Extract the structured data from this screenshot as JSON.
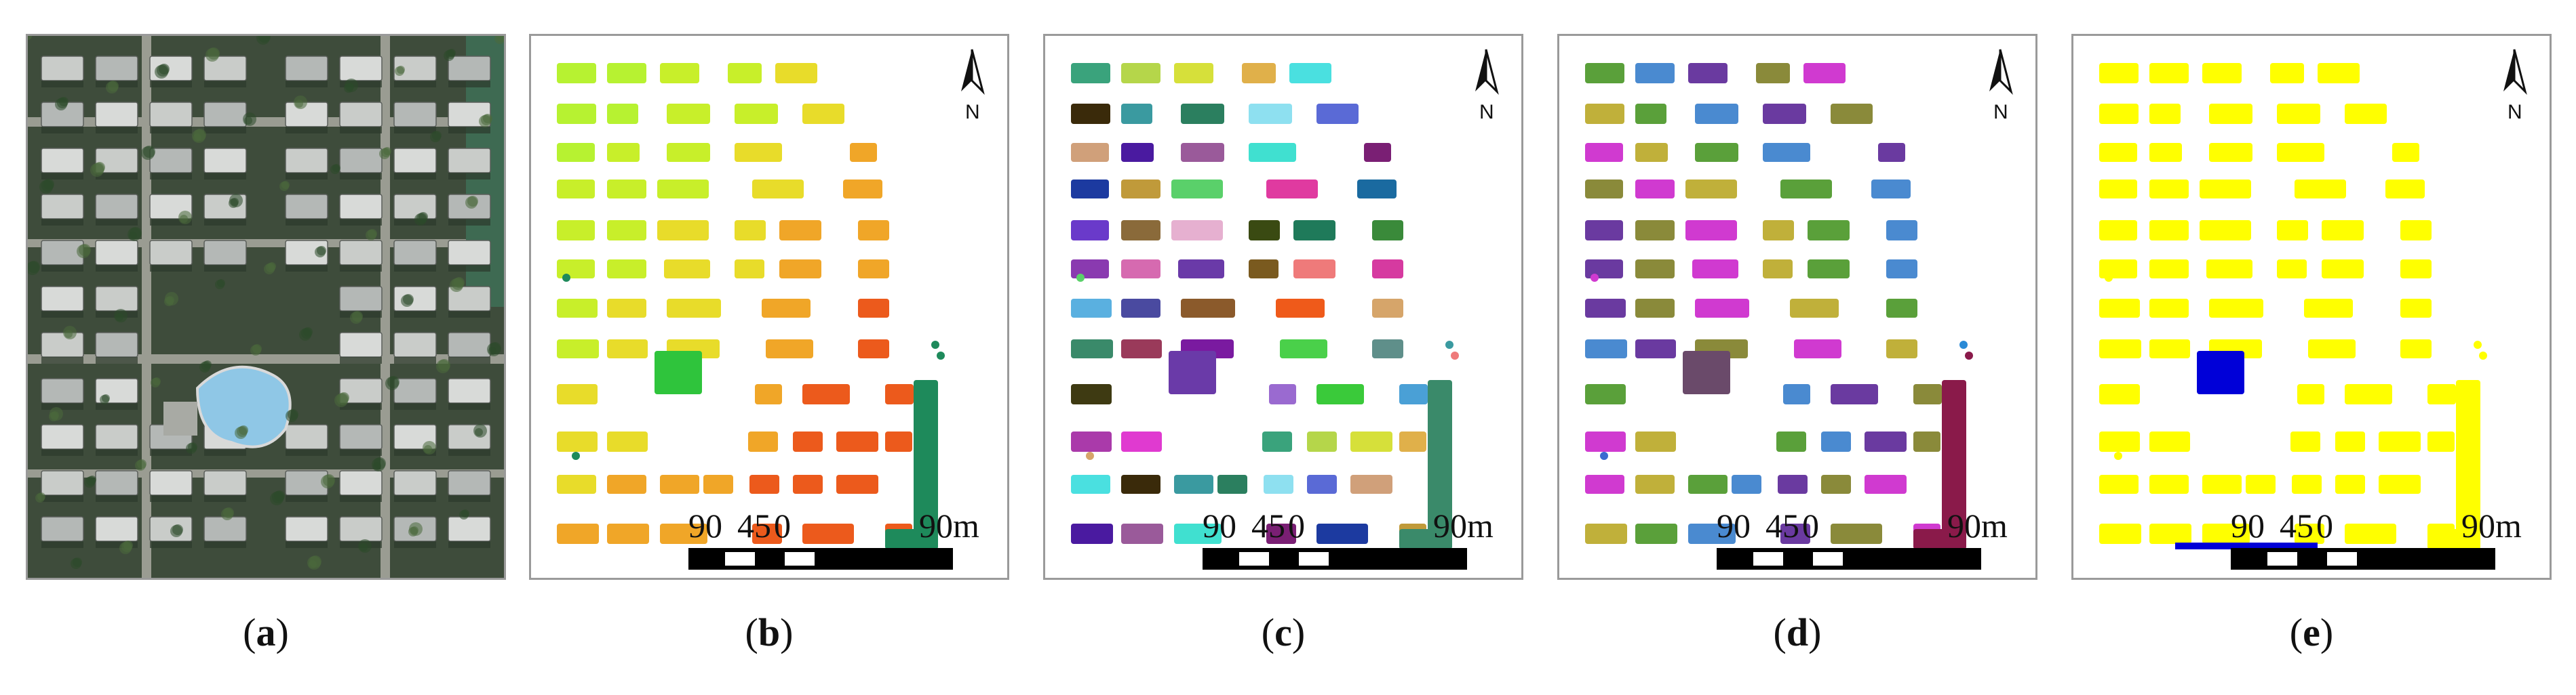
{
  "panels": [
    {
      "id": "a",
      "label": "a",
      "kind": "photo"
    },
    {
      "id": "b",
      "label": "b",
      "kind": "map",
      "palette": "gradient",
      "colors": [
        "#b7f231",
        "#c8ef2a",
        "#e8dc2a",
        "#f0a628",
        "#ec5a1c"
      ],
      "accent": "#1e8a5b",
      "special": "#2fc43c"
    },
    {
      "id": "c",
      "label": "c",
      "kind": "map",
      "palette": "random",
      "colors": [
        "#8b5a2b",
        "#5f8f8a",
        "#3aa37c",
        "#2b7f5f",
        "#7a1f74",
        "#8a6a3a",
        "#6a3aa8",
        "#ef5a1a",
        "#3e3a12",
        "#b5d64a",
        "#8ee0f0",
        "#1c3aa0",
        "#e6b0d0",
        "#7a5a1f",
        "#d6a56a",
        "#9a6ad0",
        "#d6e03a",
        "#5a6ad6",
        "#c09a3a",
        "#3a4a12",
        "#ef7a7a",
        "#3a8a6a",
        "#3aca3a",
        "#e0b04a",
        "#d0a07a",
        "#5ad06a",
        "#1f7a5a",
        "#d63aa0",
        "#9a3a5a",
        "#4aa0d6",
        "#4ae0e0",
        "#4a1aa0",
        "#e03aa0",
        "#3a8a3a",
        "#5ab0e0",
        "#7a1aa0",
        "#aa3aaa",
        "#3a2a0a",
        "#9a5a9a",
        "#1a6aa0",
        "#8a3ab0",
        "#4a4aa0",
        "#4ad04a",
        "#e03ad0",
        "#3a9aa0",
        "#40e0d0",
        "#6a3aca",
        "#d66ab0"
      ]
    },
    {
      "id": "d",
      "label": "d",
      "kind": "map",
      "palette": "random",
      "colors": [
        "#1a9aaa",
        "#4a1ad0",
        "#2a8ad6",
        "#5aa03a",
        "#aa3ad0",
        "#9ac8e6",
        "#e0a0b0",
        "#a08a6a",
        "#1a1a6a",
        "#6a4a6a",
        "#4a8ad0",
        "#7ad04a",
        "#d03aa0",
        "#d08a8a",
        "#3a6ad0",
        "#1a6a8a",
        "#4aa0a0",
        "#6a3aa0",
        "#8ae0b0",
        "#8a6ad6",
        "#3a8a6a",
        "#aa1aca",
        "#4ac0a0",
        "#3aaa3a",
        "#8a8a3a",
        "#6aaa3a",
        "#8a1a4a",
        "#3a3a6a",
        "#d05a1a",
        "#3aca4a",
        "#1a3aca",
        "#d03ad0",
        "#e06ad0",
        "#5a8a3a",
        "#7a8a9a",
        "#d03a6a",
        "#5aaa5a",
        "#5a6a5a",
        "#c0b03a",
        "#6ab07a",
        "#3a7ab0",
        "#d06ad0"
      ]
    },
    {
      "id": "e",
      "label": "e",
      "kind": "map",
      "palette": "binary",
      "colors": [
        "#ffff00"
      ],
      "special": "#0000d8"
    }
  ],
  "scale_bar": {
    "labels": [
      "90",
      "45",
      "0",
      "90m"
    ]
  },
  "north_arrow": {
    "letter": "N"
  }
}
